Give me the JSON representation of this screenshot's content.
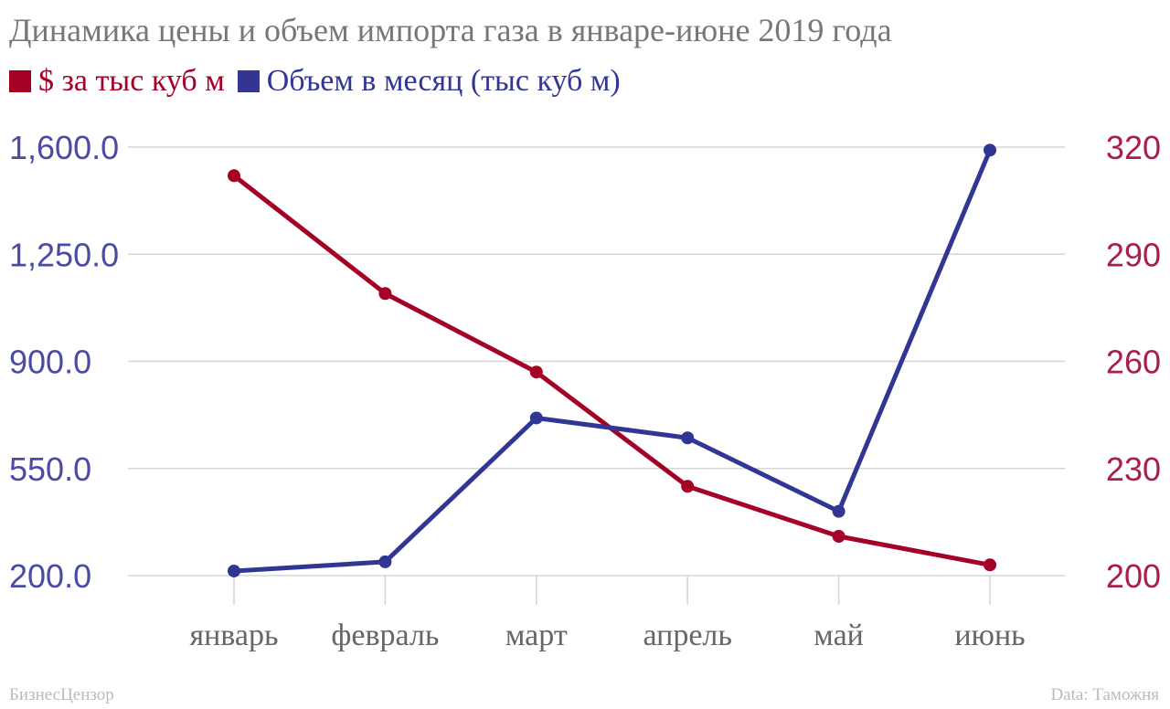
{
  "chart_data": {
    "type": "line",
    "title": "Динамика цены и объем импорта газа в январе-июне 2019 года",
    "categories": [
      "январь",
      "февраль",
      "март",
      "апрель",
      "май",
      "июнь"
    ],
    "series": [
      {
        "name": "$ за тыс куб м",
        "axis": "right",
        "color": "#a50026",
        "values": [
          312,
          279,
          257,
          225,
          211,
          203
        ]
      },
      {
        "name": "Объем в месяц (тыс куб м)",
        "axis": "left",
        "color": "#313695",
        "values": [
          215,
          245,
          715,
          650,
          410,
          1590
        ]
      }
    ],
    "y_left": {
      "ylim": [
        200,
        1600
      ],
      "ticks": [
        "1,600.0",
        "1,250.0",
        "900.0",
        "550.0",
        "200.0"
      ],
      "tick_values": [
        1600,
        1250,
        900,
        550,
        200
      ],
      "color": "#4b4ba5"
    },
    "y_right": {
      "ylim": [
        200,
        320
      ],
      "ticks": [
        "320",
        "290",
        "260",
        "230",
        "200"
      ],
      "tick_values": [
        320,
        290,
        260,
        230,
        200
      ],
      "color": "#a8204a"
    },
    "grid": true,
    "legend": "top-left"
  },
  "footer": {
    "source_left": "БизнесЦензор",
    "source_right": "Data: Таможня"
  }
}
